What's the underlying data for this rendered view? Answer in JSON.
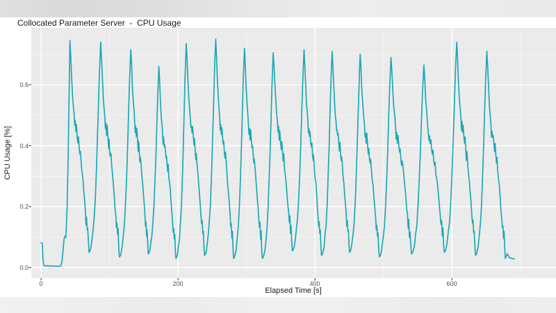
{
  "chart_data": {
    "type": "line",
    "title": "Collocated Parameter Server  -  CPU Usage",
    "xlabel": "Elapsed Time [s]",
    "ylabel": "CPU Usage [%]",
    "legend": "none",
    "grid": true,
    "panel_bg": "#EBEBEB",
    "grid_color": "#FFFFFF",
    "tick_color": "#333333",
    "line_color": "#1BA8B5",
    "xlim": [
      -14.4,
      752
    ],
    "ylim": [
      -0.034,
      0.787
    ],
    "x_ticks": [
      {
        "v": 0,
        "label": "0"
      },
      {
        "v": 200,
        "label": "200"
      },
      {
        "v": 400,
        "label": "400"
      },
      {
        "v": 600,
        "label": "600"
      }
    ],
    "y_ticks": [
      {
        "v": 0.0,
        "label": "0.0"
      },
      {
        "v": 0.2,
        "label": "0.2"
      },
      {
        "v": 0.4,
        "label": "0.4"
      },
      {
        "v": 0.6,
        "label": "0.6"
      }
    ],
    "x_minor": [
      100,
      300,
      500,
      700
    ],
    "y_minor": [
      0.1,
      0.3,
      0.5,
      0.7
    ],
    "series": {
      "name": "CPU Usage",
      "period_s": 43.5,
      "ref_peak": 0.73,
      "ref_trough": 0.045,
      "intro_points": [
        [
          0,
          0.082
        ],
        [
          1.8,
          0.078
        ],
        [
          2.6,
          0.03
        ],
        [
          4,
          0.006
        ],
        [
          27,
          0.004
        ],
        [
          29,
          0.008
        ],
        [
          30.5,
          0.02
        ],
        [
          32,
          0.055
        ],
        [
          33.5,
          0.095
        ],
        [
          34.8,
          0.103
        ],
        [
          35.8,
          0.098
        ],
        [
          36.8,
          0.13
        ],
        [
          38,
          0.2
        ],
        [
          39.2,
          0.33
        ],
        [
          40.2,
          0.47
        ],
        [
          41,
          0.59
        ],
        [
          41.6,
          0.68
        ],
        [
          42,
          0.745
        ]
      ],
      "cycles": [
        {
          "t": 42,
          "peak": 0.745,
          "trough": 0.05
        },
        {
          "t": 87,
          "peak": 0.74,
          "trough": 0.035
        },
        {
          "t": 131,
          "peak": 0.715,
          "trough": 0.045
        },
        {
          "t": 172,
          "peak": 0.66,
          "trough": 0.03
        },
        {
          "t": 212,
          "peak": 0.735,
          "trough": 0.04
        },
        {
          "t": 255,
          "peak": 0.75,
          "trough": 0.03
        },
        {
          "t": 297,
          "peak": 0.72,
          "trough": 0.03
        },
        {
          "t": 339,
          "peak": 0.705,
          "trough": 0.055
        },
        {
          "t": 384,
          "peak": 0.715,
          "trough": 0.04
        },
        {
          "t": 425,
          "peak": 0.71,
          "trough": 0.05
        },
        {
          "t": 466,
          "peak": 0.7,
          "trough": 0.035
        },
        {
          "t": 511,
          "peak": 0.69,
          "trough": 0.045
        },
        {
          "t": 559,
          "peak": 0.665,
          "trough": 0.05
        },
        {
          "t": 607,
          "peak": 0.74,
          "trough": 0.04
        },
        {
          "t": 651,
          "peak": 0.71,
          "trough": 0.03
        }
      ],
      "decay_template": [
        [
          0,
          0.73
        ],
        [
          1.2,
          0.678
        ],
        [
          2.4,
          0.612
        ],
        [
          3.8,
          0.552
        ],
        [
          5.0,
          0.518
        ],
        [
          6.0,
          0.486
        ],
        [
          6.8,
          0.452
        ],
        [
          7.5,
          0.471
        ],
        [
          8.5,
          0.436
        ],
        [
          9.3,
          0.457
        ],
        [
          10.4,
          0.421
        ],
        [
          11.4,
          0.397
        ],
        [
          12.1,
          0.417
        ],
        [
          13.2,
          0.381
        ],
        [
          14.0,
          0.357
        ],
        [
          14.8,
          0.375
        ],
        [
          15.9,
          0.338
        ],
        [
          17.0,
          0.31
        ],
        [
          18.2,
          0.281
        ],
        [
          19.4,
          0.246
        ],
        [
          20.7,
          0.208
        ],
        [
          21.9,
          0.171
        ],
        [
          22.7,
          0.142
        ],
        [
          23.5,
          0.157
        ],
        [
          24.4,
          0.111
        ],
        [
          25.2,
          0.127
        ],
        [
          26.1,
          0.076
        ],
        [
          27.0,
          0.045
        ]
      ],
      "rise_template": [
        [
          28.3,
          0.005
        ],
        [
          29.6,
          0.02
        ],
        [
          31.0,
          0.05
        ],
        [
          32.6,
          0.095
        ],
        [
          34.2,
          0.155
        ],
        [
          35.8,
          0.25
        ],
        [
          37.4,
          0.385
        ],
        [
          38.9,
          0.54
        ],
        [
          40.3,
          0.7
        ],
        [
          41.6,
          0.84
        ],
        [
          42.6,
          0.93
        ],
        [
          43.5,
          1.0
        ]
      ],
      "outro_points": [
        [
          681,
          0.045
        ],
        [
          684,
          0.032
        ],
        [
          688,
          0.03
        ],
        [
          691,
          0.028
        ]
      ]
    }
  }
}
